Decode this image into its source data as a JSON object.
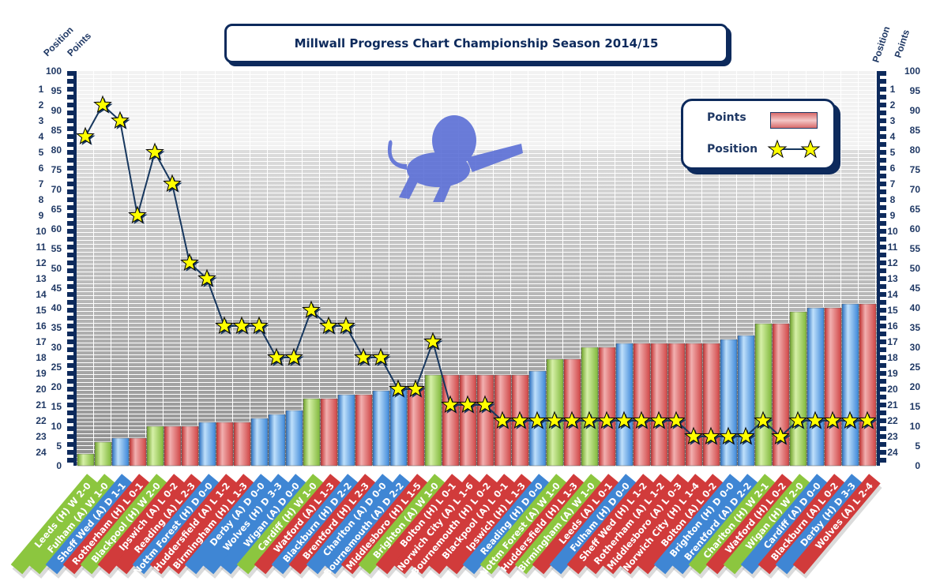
{
  "chart_data": {
    "type": "bar+line",
    "title": "Millwall Progress Chart Championship Season 2014/15",
    "left_axis_labels": {
      "position": "Position",
      "points": "Points"
    },
    "right_axis_labels": {
      "position": "Position",
      "points": "Points"
    },
    "points_axis": {
      "range": [
        0,
        100
      ],
      "ticks": [
        0,
        5,
        10,
        15,
        20,
        25,
        30,
        35,
        40,
        45,
        50,
        55,
        60,
        65,
        70,
        75,
        80,
        85,
        90,
        95,
        100
      ]
    },
    "position_axis": {
      "range": [
        1,
        24
      ],
      "inverted": true,
      "ticks": [
        1,
        2,
        3,
        4,
        5,
        6,
        7,
        8,
        9,
        10,
        11,
        12,
        13,
        14,
        15,
        16,
        17,
        18,
        19,
        20,
        21,
        22,
        23,
        24
      ]
    },
    "legend": {
      "placement": "top-right",
      "points_label": "Points",
      "position_label": "Position"
    },
    "result_colors": {
      "W": "#8cc63f",
      "D": "#3f86d4",
      "L": "#d13b3b"
    },
    "matches": [
      {
        "label": "Leeds (H) W 2-0",
        "result": "W",
        "points": 3,
        "position": 4
      },
      {
        "label": "Fulham (A) W 1-0",
        "result": "W",
        "points": 6,
        "position": 2
      },
      {
        "label": "Sheff Wed (A) D 1-1",
        "result": "D",
        "points": 7,
        "position": 3
      },
      {
        "label": "Rotherham (H) L 0-1",
        "result": "L",
        "points": 7,
        "position": 9
      },
      {
        "label": "Blackpool (H) W 2-0",
        "result": "W",
        "points": 10,
        "position": 5
      },
      {
        "label": "Ipswich (A) L 0-2",
        "result": "L",
        "points": 10,
        "position": 7
      },
      {
        "label": "Reading (A) L 2-3",
        "result": "L",
        "points": 10,
        "position": 12
      },
      {
        "label": "Nottm Forest (H) D 0-0",
        "result": "D",
        "points": 11,
        "position": 13
      },
      {
        "label": "Huddersfield (A) L 1-2",
        "result": "L",
        "points": 11,
        "position": 16
      },
      {
        "label": "Birmingham (H) L 1-3",
        "result": "L",
        "points": 11,
        "position": 16
      },
      {
        "label": "Derby (A) D 0-0",
        "result": "D",
        "points": 12,
        "position": 16
      },
      {
        "label": "Wolves (H) D 3-3",
        "result": "D",
        "points": 13,
        "position": 18
      },
      {
        "label": "Wigan (A) D 0-0",
        "result": "D",
        "points": 14,
        "position": 18
      },
      {
        "label": "Cardiff (H) W 1-0",
        "result": "W",
        "points": 17,
        "position": 15
      },
      {
        "label": "Watford (A) L 1-3",
        "result": "L",
        "points": 17,
        "position": 16
      },
      {
        "label": "Blackburn (H) D 2-2",
        "result": "D",
        "points": 18,
        "position": 16
      },
      {
        "label": "Brentford (H) L 2-3",
        "result": "L",
        "points": 18,
        "position": 18
      },
      {
        "label": "Charlton (A) D 0-0",
        "result": "D",
        "points": 19,
        "position": 18
      },
      {
        "label": "Bournemouth (A) D 2-2",
        "result": "D",
        "points": 20,
        "position": 20
      },
      {
        "label": "Middlesboro (H) L 1-5",
        "result": "L",
        "points": 20,
        "position": 20
      },
      {
        "label": "Brighton (A) W 1-0",
        "result": "W",
        "points": 23,
        "position": 17
      },
      {
        "label": "Bolton (H) L 0-1",
        "result": "L",
        "points": 23,
        "position": 21
      },
      {
        "label": "Norwich City (A) L 1-6",
        "result": "L",
        "points": 23,
        "position": 21
      },
      {
        "label": "Bournemouth (H) L 0-2",
        "result": "L",
        "points": 23,
        "position": 21
      },
      {
        "label": "Blackpool (A) L 0-1",
        "result": "L",
        "points": 23,
        "position": 22
      },
      {
        "label": "Ipswich (H) L 1-3",
        "result": "L",
        "points": 23,
        "position": 22
      },
      {
        "label": "Reading (H) D 0-0",
        "result": "D",
        "points": 24,
        "position": 22
      },
      {
        "label": "Nottm Forest (A) W 1-0",
        "result": "W",
        "points": 27,
        "position": 22
      },
      {
        "label": "Huddersfield (H) L 1-3",
        "result": "L",
        "points": 27,
        "position": 22
      },
      {
        "label": "Birmingham (A) W 1-0",
        "result": "W",
        "points": 30,
        "position": 22
      },
      {
        "label": "Leeds (A) L 0-1",
        "result": "L",
        "points": 30,
        "position": 22
      },
      {
        "label": "Fulham (H) D 0-0",
        "result": "D",
        "points": 31,
        "position": 22
      },
      {
        "label": "Sheff Wed (H) L 1-2",
        "result": "L",
        "points": 31,
        "position": 22
      },
      {
        "label": "Rotherham (A) L 1-2",
        "result": "L",
        "points": 31,
        "position": 22
      },
      {
        "label": "Middlesboro (A) L 0-3",
        "result": "L",
        "points": 31,
        "position": 22
      },
      {
        "label": "Norwich City (H) L 1-4",
        "result": "L",
        "points": 31,
        "position": 23
      },
      {
        "label": "Bolton (A) L 0-2",
        "result": "L",
        "points": 31,
        "position": 23
      },
      {
        "label": "Brighton (H) D 0-0",
        "result": "D",
        "points": 32,
        "position": 23
      },
      {
        "label": "Brentford (A) D 2-2",
        "result": "D",
        "points": 33,
        "position": 23
      },
      {
        "label": "Charlton (H) W 2-1",
        "result": "W",
        "points": 36,
        "position": 22
      },
      {
        "label": "Watford (H) L 0-2",
        "result": "L",
        "points": 36,
        "position": 23
      },
      {
        "label": "Wigan (H) W 2-0",
        "result": "W",
        "points": 39,
        "position": 22
      },
      {
        "label": "Cardiff (A) D 0-0",
        "result": "D",
        "points": 40,
        "position": 22
      },
      {
        "label": "Blackburn (A) L 0-2",
        "result": "L",
        "points": 40,
        "position": 22
      },
      {
        "label": "Derby (H) D 3-3",
        "result": "D",
        "points": 41,
        "position": 22
      },
      {
        "label": "Wolves (A) L 2-4",
        "result": "L",
        "points": 41,
        "position": 22
      }
    ]
  }
}
